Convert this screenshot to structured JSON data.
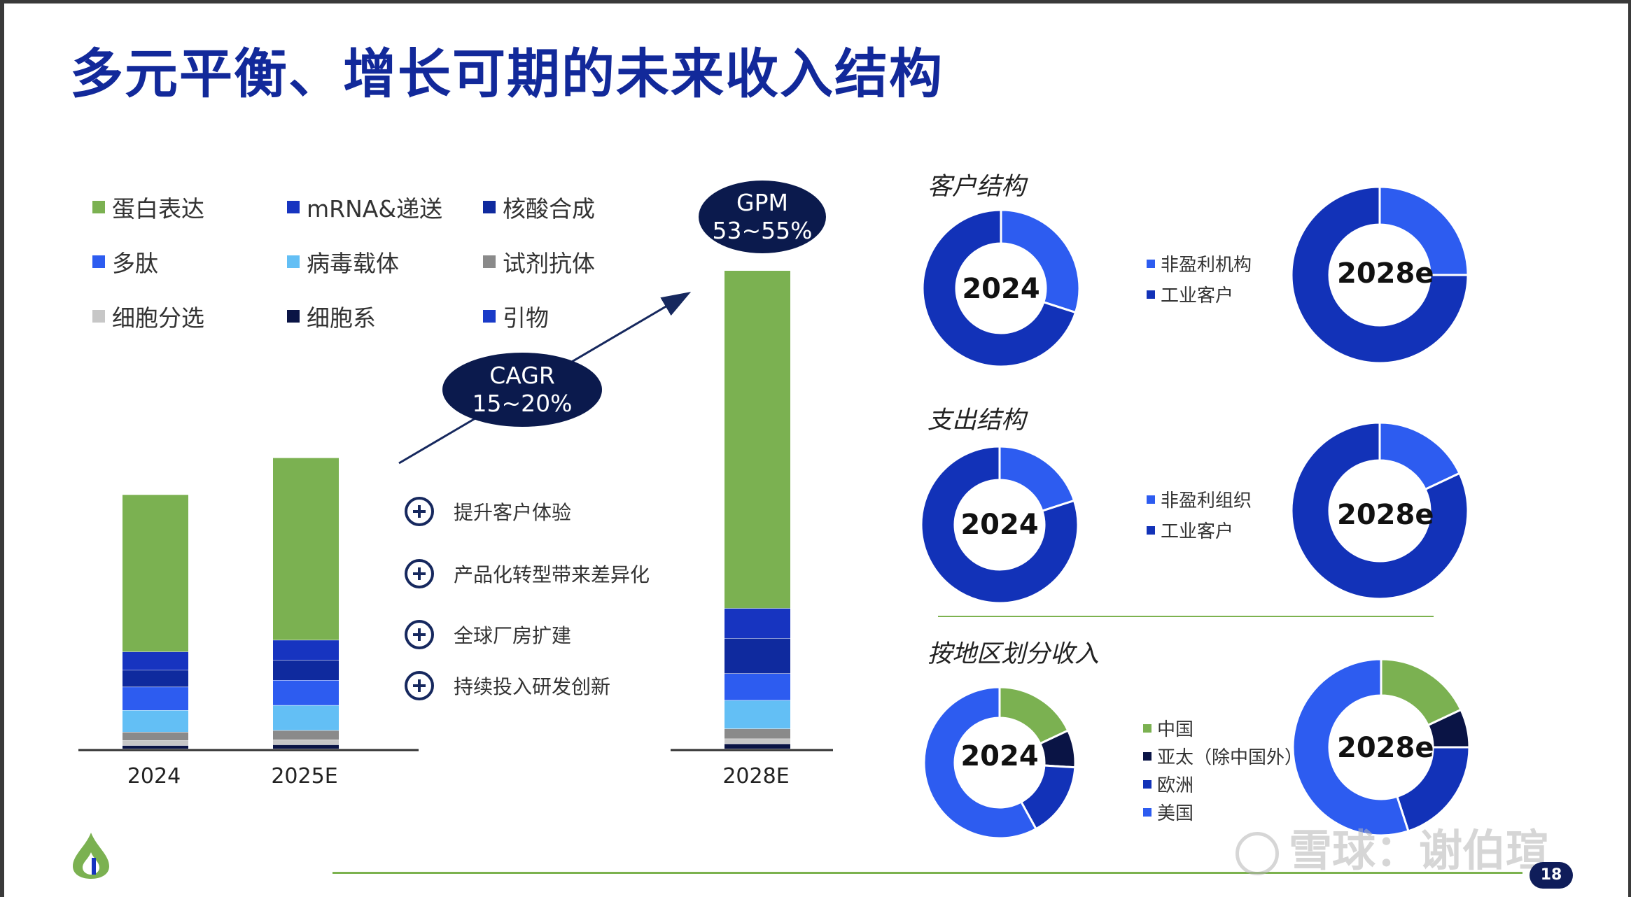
{
  "title": "多元平衡、增长可期的未来收入结构",
  "colors": {
    "protein": "#7bb151",
    "mrna": "#1734c0",
    "nucleic": "#0f2a9e",
    "peptide": "#2d5cf0",
    "viral": "#63bff5",
    "reagent": "#8a8a8a",
    "cell_sort": "#c7c7c7",
    "cell_line": "#0a1445",
    "primer": "#1a3bc8",
    "title": "#12299a"
  },
  "legend": [
    {
      "label": "蛋白表达",
      "color": "#7bb151"
    },
    {
      "label": "mRNA&递送",
      "color": "#1734c0"
    },
    {
      "label": "核酸合成",
      "color": "#0f2a9e"
    },
    {
      "label": "多肽",
      "color": "#2d5cf0"
    },
    {
      "label": "病毒载体",
      "color": "#63bff5"
    },
    {
      "label": "试剂抗体",
      "color": "#8a8a8a"
    },
    {
      "label": "细胞分选",
      "color": "#c7c7c7"
    },
    {
      "label": "细胞系",
      "color": "#0a1445"
    },
    {
      "label": "引物",
      "color": "#1a3bc8"
    }
  ],
  "bubbles": {
    "cagr": {
      "line1": "CAGR",
      "line2": "15~20%"
    },
    "gpm": {
      "line1": "GPM",
      "line2": "53~55%"
    }
  },
  "drivers": [
    "提升客户体验",
    "产品化转型带来差异化",
    "全球厂房扩建",
    "持续投入研发创新"
  ],
  "chart_data": [
    {
      "type": "bar",
      "stacked": true,
      "categories": [
        "2024",
        "2025E",
        "2028E"
      ],
      "series": [
        {
          "name": "细胞系",
          "values": [
            1.0,
            1.2,
            1.5
          ]
        },
        {
          "name": "细胞分选",
          "values": [
            1.5,
            1.5,
            1.5
          ]
        },
        {
          "name": "试剂抗体",
          "values": [
            2.5,
            2.8,
            3.0
          ]
        },
        {
          "name": "病毒载体",
          "values": [
            6.5,
            7.5,
            8.5
          ]
        },
        {
          "name": "多肽",
          "values": [
            7.0,
            7.5,
            8.0
          ]
        },
        {
          "name": "核酸合成",
          "values": [
            5.0,
            6.0,
            10.5
          ]
        },
        {
          "name": "mRNA&递送",
          "values": [
            5.5,
            6.0,
            9.0
          ]
        },
        {
          "name": "蛋白表达",
          "values": [
            47.0,
            54.5,
            101.0
          ]
        }
      ]
    },
    {
      "type": "pie",
      "title": "客户结构",
      "center_label": "2024",
      "labels": [
        "非盈利机构",
        "工业客户"
      ],
      "values": [
        30,
        70
      ],
      "colors": [
        "#2d5cf0",
        "#1232b8"
      ]
    },
    {
      "type": "pie",
      "title": "客户结构",
      "center_label": "2028e",
      "labels": [
        "非盈利机构",
        "工业客户"
      ],
      "values": [
        25,
        75
      ],
      "colors": [
        "#2d5cf0",
        "#1232b8"
      ]
    },
    {
      "type": "pie",
      "title": "支出结构",
      "center_label": "2024",
      "labels": [
        "非盈利组织",
        "工业客户"
      ],
      "values": [
        20,
        80
      ],
      "colors": [
        "#2d5cf0",
        "#1232b8"
      ]
    },
    {
      "type": "pie",
      "title": "支出结构",
      "center_label": "2028e",
      "labels": [
        "非盈利组织",
        "工业客户"
      ],
      "values": [
        18,
        82
      ],
      "colors": [
        "#2d5cf0",
        "#1232b8"
      ]
    },
    {
      "type": "pie",
      "title": "按地区划分收入",
      "center_label": "2024",
      "labels": [
        "中国",
        "亚太（除中国外）",
        "欧洲",
        "美国"
      ],
      "values": [
        18,
        8,
        16,
        58
      ],
      "colors": [
        "#7bb151",
        "#0a1445",
        "#1232b8",
        "#2d5cf0"
      ]
    },
    {
      "type": "pie",
      "title": "按地区划分收入",
      "center_label": "2028e",
      "labels": [
        "中国",
        "亚太（除中国外）",
        "欧洲",
        "美国"
      ],
      "values": [
        18,
        7,
        20,
        55
      ],
      "colors": [
        "#7bb151",
        "#0a1445",
        "#1232b8",
        "#2d5cf0"
      ]
    }
  ],
  "donut_groups": [
    {
      "title": "客户结构",
      "legend": [
        "非盈利机构",
        "工业客户"
      ]
    },
    {
      "title": "支出结构",
      "legend": [
        "非盈利组织",
        "工业客户"
      ]
    },
    {
      "title": "按地区划分收入",
      "legend": [
        "中国",
        "亚太（除中国外）",
        "欧洲",
        "美国"
      ]
    }
  ],
  "watermark": "雪球：谢伯瑄",
  "page_number": "18"
}
